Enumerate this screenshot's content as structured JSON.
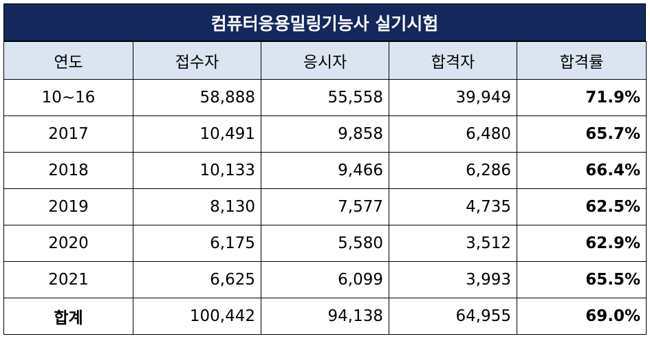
{
  "title": "컴퓨터응용밀링기능사 실기시험",
  "headers": [
    "연도",
    "접수자",
    "응시자",
    "합격자",
    "합격률"
  ],
  "rows": [
    {
      "year": "10~16",
      "applicants": "58,888",
      "examinees": "55,558",
      "passed": "39,949",
      "rate": "71.9%"
    },
    {
      "year": "2017",
      "applicants": "10,491",
      "examinees": "9,858",
      "passed": "6,480",
      "rate": "65.7%"
    },
    {
      "year": "2018",
      "applicants": "10,133",
      "examinees": "9,466",
      "passed": "6,286",
      "rate": "66.4%"
    },
    {
      "year": "2019",
      "applicants": "8,130",
      "examinees": "7,577",
      "passed": "4,735",
      "rate": "62.5%"
    },
    {
      "year": "2020",
      "applicants": "6,175",
      "examinees": "5,580",
      "passed": "3,512",
      "rate": "62.9%"
    },
    {
      "year": "2021",
      "applicants": "6,625",
      "examinees": "6,099",
      "passed": "3,993",
      "rate": "65.5%"
    }
  ],
  "total": {
    "year": "합계",
    "applicants": "100,442",
    "examinees": "94,138",
    "passed": "64,955",
    "rate": "69.0%"
  },
  "colors": {
    "title_bg": "#14285c",
    "header_bg": "#dbe5f1"
  }
}
